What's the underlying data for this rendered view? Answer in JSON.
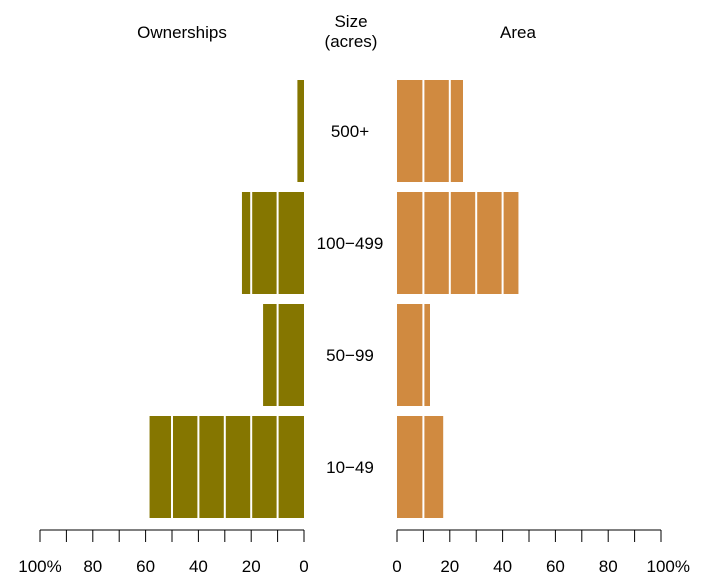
{
  "chart_data": {
    "type": "bar",
    "orientation": "horizontal",
    "layout": "back-to-back",
    "headers": {
      "left": "Ownerships",
      "center_line1": "Size",
      "center_line2": "(acres)",
      "right": "Area"
    },
    "categories": [
      "500+",
      "100−499",
      "50−99",
      "10−49"
    ],
    "series": [
      {
        "side": "left",
        "values": [
          2.5,
          23.5,
          15.5,
          58.5
        ],
        "color": "#857600"
      },
      {
        "side": "right",
        "values": [
          25.0,
          46.0,
          12.5,
          17.5
        ],
        "color": "#d08a40"
      }
    ],
    "xlim": [
      0,
      100
    ],
    "segment_step": 10,
    "axes": {
      "left_ticks": [
        "100%",
        "80",
        "60",
        "40",
        "20",
        "0"
      ],
      "right_ticks": [
        "0",
        "20",
        "40",
        "60",
        "80",
        "100%"
      ]
    },
    "grid": false
  }
}
